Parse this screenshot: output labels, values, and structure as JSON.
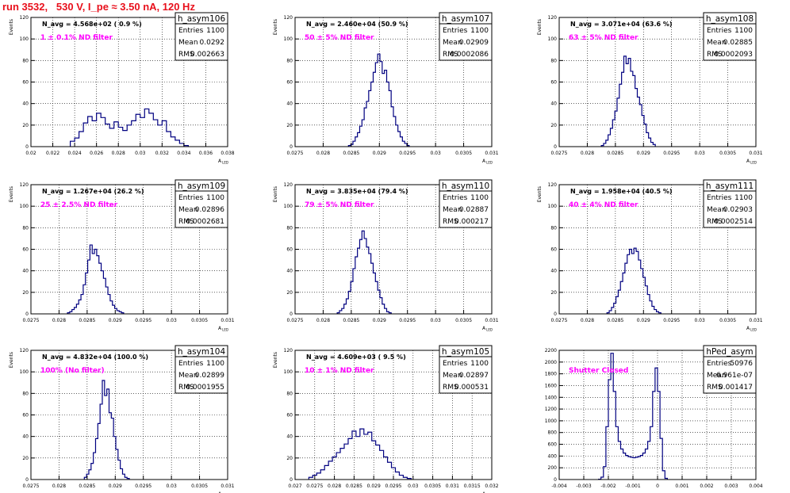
{
  "page": {
    "title": "run 3532,   530 V, I_pe ≈ 3.50 nA, 120 Hz"
  },
  "style": {
    "title_color": "#e8101c",
    "line_color": "#000080",
    "label_color": "#ff00ff"
  },
  "chart_data": [
    {
      "type": "histogram",
      "name": "h_asym106",
      "ylabel": "Events",
      "xlabel": "A",
      "xlabel_sub": "LED",
      "xlim": [
        0.02,
        0.038
      ],
      "ylim": [
        0,
        120
      ],
      "xticks": [
        "0.02",
        "0.022",
        "0.024",
        "0.026",
        "0.028",
        "0.03",
        "0.032",
        "0.034",
        "0.036",
        "0.038"
      ],
      "yticks": [
        "0",
        "20",
        "40",
        "60",
        "80",
        "100",
        "120"
      ],
      "grid": true,
      "stats": {
        "Entries": "1100",
        "Mean": "0.0292",
        "RMS": "0.002663"
      },
      "navg": "N_avg = 4.568e+02 ( 0.9 %)",
      "filter": "1 ± 0.1% ND filter",
      "bins": {
        "start": 0.0236,
        "width": 0.0004,
        "counts": [
          5,
          8,
          14,
          22,
          28,
          24,
          31,
          27,
          21,
          17,
          23,
          18,
          15,
          20,
          24,
          30,
          27,
          35,
          31,
          25,
          20,
          24,
          14,
          9,
          6,
          3,
          1
        ]
      }
    },
    {
      "type": "histogram",
      "name": "h_asym107",
      "ylabel": "Events",
      "xlabel": "A",
      "xlabel_sub": "LED",
      "xlim": [
        0.0275,
        0.031
      ],
      "ylim": [
        0,
        120
      ],
      "xticks": [
        "0.0275",
        "0.028",
        "0.0285",
        "0.029",
        "0.0295",
        "0.03",
        "0.0305",
        "0.031"
      ],
      "yticks": [
        "0",
        "20",
        "40",
        "60",
        "80",
        "100",
        "120"
      ],
      "grid": true,
      "stats": {
        "Entries": "1100",
        "Mean": "0.02909",
        "RMS": "0.0002086"
      },
      "navg": "N_avg = 2.460e+04 (50.9 %)",
      "filter": "50 ± 5% ND filter",
      "bins": {
        "start": 0.02845,
        "width": 4e-05,
        "counts": [
          1,
          2,
          5,
          9,
          13,
          19,
          25,
          36,
          42,
          52,
          60,
          69,
          78,
          86,
          79,
          68,
          71,
          60,
          52,
          37,
          28,
          20,
          14,
          9,
          5,
          3,
          1
        ]
      }
    },
    {
      "type": "histogram",
      "name": "h_asym108",
      "ylabel": "Events",
      "xlabel": "A",
      "xlabel_sub": "LED",
      "xlim": [
        0.0275,
        0.031
      ],
      "ylim": [
        0,
        120
      ],
      "xticks": [
        "0.0275",
        "0.028",
        "0.0285",
        "0.029",
        "0.0295",
        "0.03",
        "0.0305",
        "0.031"
      ],
      "yticks": [
        "0",
        "20",
        "40",
        "60",
        "80",
        "100",
        "120"
      ],
      "grid": true,
      "stats": {
        "Entries": "1100",
        "Mean": "0.02885",
        "RMS": "0.0002093"
      },
      "navg": "N_avg = 3.071e+04 (63.6 %)",
      "filter": "63 ± 5% ND filter",
      "bins": {
        "start": 0.02825,
        "width": 4e-05,
        "counts": [
          1,
          3,
          6,
          11,
          17,
          25,
          33,
          45,
          58,
          69,
          84,
          77,
          82,
          70,
          66,
          54,
          46,
          39,
          29,
          21,
          13,
          8,
          4,
          2
        ]
      }
    },
    {
      "type": "histogram",
      "name": "h_asym109",
      "ylabel": "Events",
      "xlabel": "A",
      "xlabel_sub": "LED",
      "xlim": [
        0.0275,
        0.031
      ],
      "ylim": [
        0,
        120
      ],
      "xticks": [
        "0.0275",
        "0.028",
        "0.0285",
        "0.029",
        "0.0295",
        "0.03",
        "0.0305",
        "0.031"
      ],
      "yticks": [
        "0",
        "20",
        "40",
        "60",
        "80",
        "100",
        "120"
      ],
      "grid": true,
      "stats": {
        "Entries": "1100",
        "Mean": "0.02896",
        "RMS": "0.0002681"
      },
      "navg": "N_avg = 1.267e+04 (26.2 %)",
      "filter": "25 ± 2.5% ND filter",
      "bins": {
        "start": 0.02815,
        "width": 4e-05,
        "counts": [
          1,
          2,
          4,
          6,
          9,
          13,
          18,
          27,
          38,
          50,
          64,
          56,
          60,
          54,
          47,
          40,
          33,
          25,
          18,
          12,
          8,
          5,
          3,
          2,
          1
        ]
      }
    },
    {
      "type": "histogram",
      "name": "h_asym110",
      "ylabel": "Events",
      "xlabel": "A",
      "xlabel_sub": "LED",
      "xlim": [
        0.0275,
        0.031
      ],
      "ylim": [
        0,
        120
      ],
      "xticks": [
        "0.0275",
        "0.028",
        "0.0285",
        "0.029",
        "0.0295",
        "0.03",
        "0.0305",
        "0.031"
      ],
      "yticks": [
        "0",
        "20",
        "40",
        "60",
        "80",
        "100",
        "120"
      ],
      "grid": true,
      "stats": {
        "Entries": "1100",
        "Mean": "0.02887",
        "RMS": "0.000217"
      },
      "navg": "N_avg = 3.835e+04 (79.4 %)",
      "filter": "79 ± 5% ND filter",
      "bins": {
        "start": 0.02825,
        "width": 4e-05,
        "counts": [
          1,
          3,
          5,
          9,
          14,
          21,
          30,
          42,
          53,
          61,
          69,
          77,
          70,
          62,
          56,
          47,
          38,
          30,
          22,
          15,
          9,
          5,
          2,
          1
        ]
      }
    },
    {
      "type": "histogram",
      "name": "h_asym111",
      "ylabel": "Events",
      "xlabel": "A",
      "xlabel_sub": "LED",
      "xlim": [
        0.0275,
        0.031
      ],
      "ylim": [
        0,
        120
      ],
      "xticks": [
        "0.0275",
        "0.028",
        "0.0285",
        "0.029",
        "0.0295",
        "0.03",
        "0.0305",
        "0.031"
      ],
      "yticks": [
        "0",
        "20",
        "40",
        "60",
        "80",
        "100",
        "120"
      ],
      "grid": true,
      "stats": {
        "Entries": "1100",
        "Mean": "0.02903",
        "RMS": "0.0002514"
      },
      "navg": "N_avg = 1.958e+04 (40.5 %)",
      "filter": "40 ± 4% ND filter",
      "bins": {
        "start": 0.02835,
        "width": 4e-05,
        "counts": [
          1,
          3,
          6,
          10,
          16,
          22,
          30,
          38,
          47,
          55,
          60,
          56,
          61,
          58,
          50,
          42,
          34,
          26,
          18,
          12,
          7,
          4,
          2,
          1
        ]
      }
    },
    {
      "type": "histogram",
      "name": "h_asym104",
      "ylabel": "Events",
      "xlabel": "A",
      "xlabel_sub": "LED",
      "xlim": [
        0.0275,
        0.031
      ],
      "ylim": [
        0,
        120
      ],
      "xticks": [
        "0.0275",
        "0.028",
        "0.0285",
        "0.029",
        "0.0295",
        "0.03",
        "0.0305",
        "0.031"
      ],
      "yticks": [
        "0",
        "20",
        "40",
        "60",
        "80",
        "100",
        "120"
      ],
      "grid": true,
      "stats": {
        "Entries": "1100",
        "Mean": "0.02899",
        "RMS": "0.0001955"
      },
      "navg": "N_avg = 4.832e+04 (100.0 %)",
      "filter": "100% (No filter)",
      "bins": {
        "start": 0.02845,
        "width": 4e-05,
        "counts": [
          2,
          5,
          9,
          15,
          25,
          38,
          52,
          70,
          92,
          78,
          84,
          62,
          57,
          40,
          28,
          18,
          10,
          5,
          2,
          1
        ]
      }
    },
    {
      "type": "histogram",
      "name": "h_asym105",
      "ylabel": "Events",
      "xlabel": "A",
      "xlabel_sub": "LED",
      "xlim": [
        0.027,
        0.032
      ],
      "ylim": [
        0,
        120
      ],
      "xticks": [
        "0.027",
        "0.0275",
        "0.028",
        "0.0285",
        "0.029",
        "0.0295",
        "0.03",
        "0.0305",
        "0.031",
        "0.0315",
        "0.032"
      ],
      "yticks": [
        "0",
        "20",
        "40",
        "60",
        "80",
        "100",
        "120"
      ],
      "grid": true,
      "stats": {
        "Entries": "1100",
        "Mean": "0.02897",
        "RMS": "0.000531"
      },
      "navg": "N_avg = 4.609e+03 ( 9.5 %)",
      "filter": "10 ± 1% ND filter",
      "bins": {
        "start": 0.02735,
        "width": 0.0001,
        "counts": [
          2,
          4,
          6,
          9,
          13,
          17,
          21,
          25,
          29,
          33,
          38,
          45,
          40,
          47,
          42,
          44,
          36,
          32,
          27,
          21,
          16,
          11,
          7,
          4,
          2,
          1
        ]
      }
    },
    {
      "type": "histogram",
      "name": "hPed_asym",
      "ylabel": "",
      "xlabel": "",
      "xlabel_sub": "",
      "xlim": [
        -0.004,
        0.004
      ],
      "ylim": [
        0,
        2200
      ],
      "xticks": [
        "-0.004",
        "-0.003",
        "-0.002",
        "-0.001",
        "0",
        "0.001",
        "0.002",
        "0.003",
        "0.004"
      ],
      "yticks": [
        "0",
        "200",
        "400",
        "600",
        "800",
        "1000",
        "1200",
        "1400",
        "1600",
        "1800",
        "2000",
        "2200"
      ],
      "grid": true,
      "stats": {
        "Entries": "50976",
        "Mean": "6.961e-07",
        "RMS": "0.001417"
      },
      "navg": "",
      "filter": "Shutter Closed",
      "bins": {
        "start": -0.0024,
        "width": 0.0001,
        "counts": [
          5,
          40,
          220,
          900,
          1700,
          2150,
          1500,
          900,
          650,
          520,
          450,
          410,
          390,
          380,
          370,
          380,
          390,
          410,
          450,
          520,
          650,
          900,
          1500,
          1900,
          1500,
          700,
          150,
          20
        ]
      }
    }
  ]
}
